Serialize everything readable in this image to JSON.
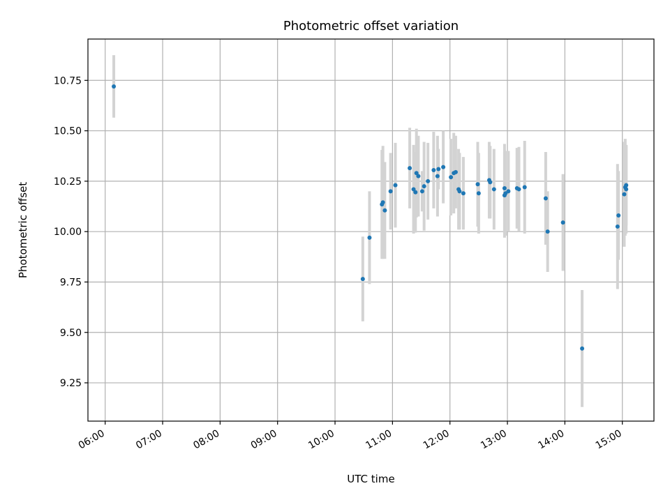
{
  "chart_data": {
    "type": "scatter",
    "title": "Photometric offset variation",
    "xlabel": "UTC time",
    "ylabel": "Photometric offset",
    "xlim": [
      "05:42",
      "15:33"
    ],
    "ylim": [
      9.06,
      10.955
    ],
    "grid": true,
    "xticks": [
      "06:00",
      "07:00",
      "08:00",
      "09:00",
      "10:00",
      "11:00",
      "12:00",
      "13:00",
      "14:00",
      "15:00"
    ],
    "yticks": [
      9.25,
      9.5,
      9.75,
      10.0,
      10.25,
      10.5,
      10.75
    ],
    "ytick_labels": [
      "9.25",
      "9.50",
      "9.75",
      "10.00",
      "10.25",
      "10.50",
      "10.75"
    ],
    "point_color": "#1f77b4",
    "errorbar_color": "#d3d3d3",
    "series": [
      {
        "x": [
          "06:09",
          "10:29",
          "10:36",
          "10:49",
          "10:50",
          "10:52",
          "10:58",
          "11:03",
          "11:18",
          "11:22",
          "11:24",
          "11:25",
          "11:27",
          "11:31",
          "11:33",
          "11:37",
          "11:43",
          "11:47",
          "11:48",
          "11:53",
          "12:01",
          "12:04",
          "12:06",
          "12:09",
          "12:10",
          "12:14",
          "12:29",
          "12:30",
          "12:41",
          "12:42",
          "12:46",
          "12:57",
          "12:57",
          "12:58",
          "13:01",
          "13:10",
          "13:12",
          "13:18",
          "13:40",
          "13:42",
          "13:58",
          "14:18",
          "14:55",
          "14:56",
          "15:02",
          "15:03",
          "15:04",
          "15:04"
        ],
        "y": [
          10.72,
          9.765,
          9.97,
          10.135,
          10.145,
          10.105,
          10.2,
          10.23,
          10.315,
          10.21,
          10.195,
          10.29,
          10.275,
          10.2,
          10.225,
          10.25,
          10.305,
          10.275,
          10.31,
          10.32,
          10.27,
          10.29,
          10.295,
          10.21,
          10.2,
          10.19,
          10.235,
          10.19,
          10.255,
          10.245,
          10.21,
          10.215,
          10.18,
          10.19,
          10.2,
          10.215,
          10.21,
          10.22,
          10.165,
          10.0,
          10.045,
          9.42,
          10.025,
          10.08,
          10.185,
          10.22,
          10.23,
          10.21
        ],
        "yerr": [
          0.155,
          0.21,
          0.23,
          0.27,
          0.28,
          0.24,
          0.19,
          0.21,
          0.2,
          0.22,
          0.2,
          0.22,
          0.2,
          0.1,
          0.22,
          0.19,
          0.19,
          0.2,
          0.1,
          0.18,
          0.19,
          0.2,
          0.18,
          0.2,
          0.19,
          0.18,
          0.21,
          0.2,
          0.19,
          0.18,
          0.2,
          0.22,
          0.21,
          0.21,
          0.2,
          0.2,
          0.21,
          0.23,
          0.23,
          0.2,
          0.24,
          0.29,
          0.31,
          0.22,
          0.26,
          0.24,
          0.2,
          0.22
        ]
      }
    ]
  }
}
